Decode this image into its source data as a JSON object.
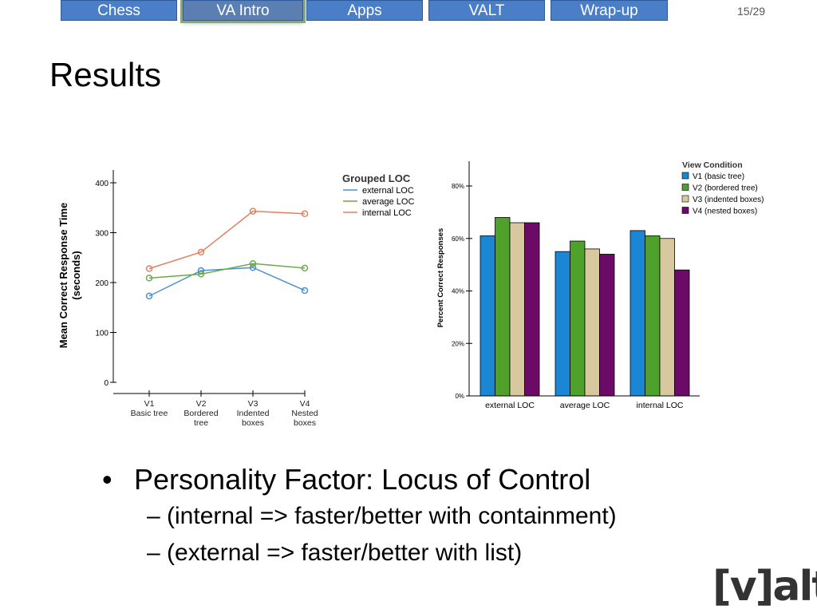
{
  "nav": {
    "tabs": [
      {
        "label": "Chess",
        "active": false
      },
      {
        "label": "VA Intro",
        "active": true
      },
      {
        "label": "Apps",
        "active": false
      },
      {
        "label": "VALT",
        "active": false
      },
      {
        "label": "Wrap-up",
        "active": false
      }
    ],
    "page": "15/29"
  },
  "slide": {
    "title": "Results",
    "bullet": "Personality Factor: Locus of Control",
    "sub1": "(internal => faster/better with containment)",
    "sub2": "(external => faster/better with list)",
    "logo": "[v]alt"
  },
  "chart_data": [
    {
      "type": "line",
      "ylabel": "Mean Correct Response Time (seconds)",
      "ylabel_lines": [
        "Mean Correct Response Time",
        "(seconds)"
      ],
      "categories": [
        [
          "V1",
          "Basic tree"
        ],
        [
          "V2",
          "Bordered",
          "tree"
        ],
        [
          "V3",
          "Indented",
          "boxes"
        ],
        [
          "V4",
          "Nested",
          "boxes"
        ]
      ],
      "ylim": [
        0,
        400
      ],
      "yticks": [
        0,
        100,
        200,
        300,
        400
      ],
      "legend_title": "Grouped LOC",
      "series": [
        {
          "name": "external LOC",
          "color": "#4a90d0",
          "values": [
            173,
            224,
            230,
            184
          ]
        },
        {
          "name": "average LOC",
          "color": "#6aaa4a",
          "values": [
            209,
            217,
            238,
            229
          ]
        },
        {
          "name": "internal LOC",
          "color": "#e08060",
          "values": [
            228,
            261,
            343,
            338
          ]
        }
      ]
    },
    {
      "type": "bar",
      "ylabel": "Percent Correct Responses",
      "categories": [
        "external LOC",
        "average LOC",
        "internal LOC"
      ],
      "ylim": [
        0,
        90
      ],
      "yticks": [
        0,
        20,
        40,
        60,
        80
      ],
      "ytick_labels": [
        "0%",
        "20%",
        "40%",
        "60%",
        "80%"
      ],
      "legend_title": "View Condition",
      "series": [
        {
          "name": "V1 (basic tree)",
          "color": "#1a86d4",
          "values": [
            61,
            55,
            63
          ]
        },
        {
          "name": "V2 (bordered tree)",
          "color": "#4ea12a",
          "values": [
            68,
            59,
            61
          ]
        },
        {
          "name": "V3 (indented boxes)",
          "color": "#d8c8a0",
          "values": [
            66,
            56,
            60
          ]
        },
        {
          "name": "V4 (nested boxes)",
          "color": "#6c0a68",
          "values": [
            66,
            54,
            48
          ]
        }
      ]
    }
  ]
}
